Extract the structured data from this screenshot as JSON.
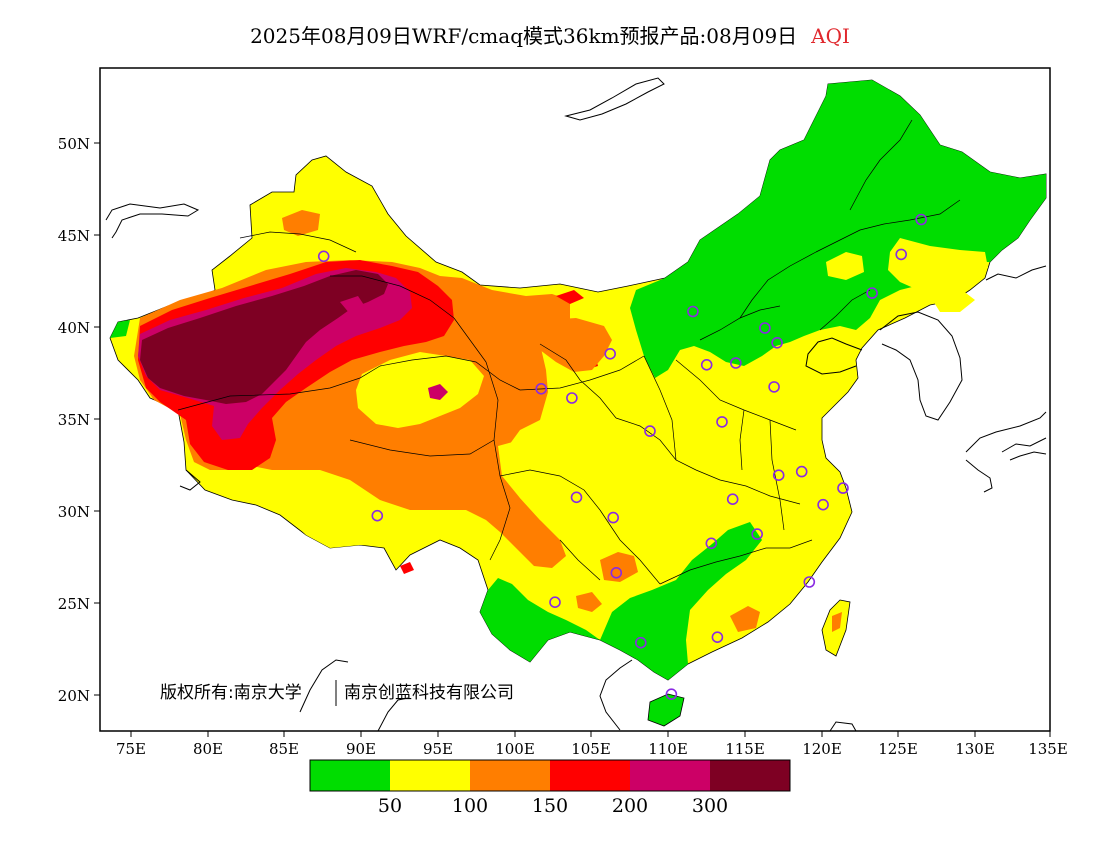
{
  "title": {
    "text": "2025年08月09日WRF/cmaq模式36km预报产品:08月09日",
    "variable": "AQI"
  },
  "axes": {
    "y_ticks": [
      "50N",
      "45N",
      "40N",
      "35N",
      "30N",
      "25N",
      "20N"
    ],
    "x_ticks": [
      "75E",
      "80E",
      "85E",
      "90E",
      "95E",
      "100E",
      "105E",
      "110E",
      "115E",
      "120E",
      "125E",
      "130E",
      "135E"
    ],
    "lon_range": [
      73,
      135
    ],
    "lat_range": [
      18,
      54
    ]
  },
  "legend": {
    "colors": [
      "#00dd00",
      "#ffff00",
      "#ff7e00",
      "#ff0000",
      "#cc0066",
      "#7e0023"
    ],
    "labels": [
      "50",
      "100",
      "150",
      "200",
      "300"
    ]
  },
  "copyright": {
    "left": "版权所有:南京大学",
    "right": "南京创蓝科技有限公司"
  },
  "colors": {
    "good": "#00dd00",
    "moderate": "#ffff00",
    "usg": "#ff7e00",
    "unhealthy": "#ff0000",
    "very_unhealthy": "#cc0066",
    "hazardous": "#7e0023",
    "station_marker": "#8a2be2"
  },
  "stations": [
    {
      "lon": 87.6,
      "lat": 43.8
    },
    {
      "lon": 91.1,
      "lat": 29.7
    },
    {
      "lon": 101.8,
      "lat": 36.6
    },
    {
      "lon": 103.8,
      "lat": 36.1
    },
    {
      "lon": 106.3,
      "lat": 38.5
    },
    {
      "lon": 111.7,
      "lat": 40.8
    },
    {
      "lon": 112.6,
      "lat": 37.9
    },
    {
      "lon": 114.5,
      "lat": 38.0
    },
    {
      "lon": 116.4,
      "lat": 39.9
    },
    {
      "lon": 117.2,
      "lat": 39.1
    },
    {
      "lon": 117.0,
      "lat": 36.7
    },
    {
      "lon": 113.6,
      "lat": 34.8
    },
    {
      "lon": 108.9,
      "lat": 34.3
    },
    {
      "lon": 104.1,
      "lat": 30.7
    },
    {
      "lon": 106.5,
      "lat": 29.6
    },
    {
      "lon": 106.7,
      "lat": 26.6
    },
    {
      "lon": 102.7,
      "lat": 25.0
    },
    {
      "lon": 108.3,
      "lat": 22.8
    },
    {
      "lon": 113.3,
      "lat": 23.1
    },
    {
      "lon": 110.3,
      "lat": 20.0
    },
    {
      "lon": 112.9,
      "lat": 28.2
    },
    {
      "lon": 114.3,
      "lat": 30.6
    },
    {
      "lon": 115.9,
      "lat": 28.7
    },
    {
      "lon": 117.3,
      "lat": 31.9
    },
    {
      "lon": 118.8,
      "lat": 32.1
    },
    {
      "lon": 120.2,
      "lat": 30.3
    },
    {
      "lon": 121.5,
      "lat": 31.2
    },
    {
      "lon": 119.3,
      "lat": 26.1
    },
    {
      "lon": 123.4,
      "lat": 41.8
    },
    {
      "lon": 125.3,
      "lat": 43.9
    },
    {
      "lon": 126.6,
      "lat": 45.8
    }
  ]
}
